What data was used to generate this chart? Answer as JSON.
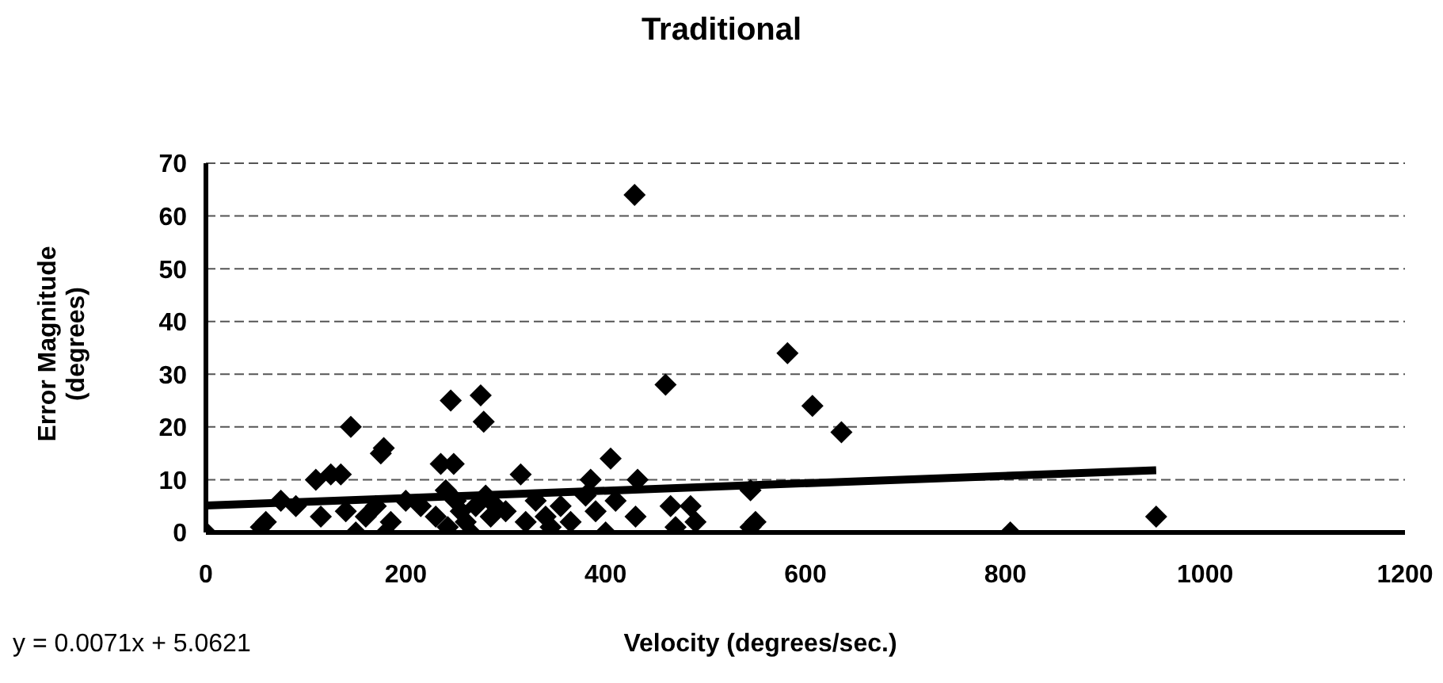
{
  "chart_data": {
    "type": "scatter",
    "title": "Traditional",
    "xlabel": "Velocity (degrees/sec.)",
    "ylabel": "Error Magnitude (degrees)",
    "annotations": [
      "y = 0.0071x + 5.0621"
    ],
    "xlim": [
      0,
      1200
    ],
    "xticks": [
      0,
      200,
      400,
      600,
      800,
      1000,
      1200
    ],
    "ylim": [
      0,
      70
    ],
    "yticks": [
      0,
      10,
      20,
      30,
      40,
      50,
      60,
      70
    ],
    "grid": "y",
    "series": [
      {
        "marker": "diamond",
        "color": "#000000",
        "x": [
          0,
          55,
          60,
          75,
          90,
          110,
          115,
          125,
          135,
          140,
          145,
          150,
          160,
          170,
          175,
          178,
          180,
          185,
          200,
          215,
          230,
          235,
          240,
          242,
          245,
          248,
          250,
          255,
          260,
          265,
          270,
          275,
          278,
          280,
          285,
          290,
          300,
          315,
          320,
          330,
          340,
          345,
          355,
          365,
          380,
          385,
          390,
          400,
          405,
          410,
          430,
          432,
          429,
          460,
          465,
          470,
          485,
          490,
          545,
          545,
          550,
          582,
          607,
          636,
          805,
          951
        ],
        "values": [
          0,
          1,
          2,
          6,
          5,
          10,
          3,
          11,
          11,
          4,
          20,
          0,
          3,
          5,
          15,
          16,
          0,
          2,
          6,
          5,
          3,
          13,
          8,
          1,
          25,
          13,
          6,
          4,
          2,
          0,
          5,
          26,
          21,
          7,
          3,
          5,
          4,
          11,
          2,
          6,
          3,
          1,
          5,
          2,
          7,
          10,
          4,
          0,
          14,
          6,
          3,
          10,
          64,
          28,
          5,
          1,
          5,
          2,
          8,
          1,
          2,
          34,
          24,
          19,
          0,
          3
        ]
      },
      {
        "type": "line",
        "marker": "none",
        "line_style": "solid",
        "color": "#000000",
        "x": [
          0,
          951
        ],
        "values": [
          5.1,
          11.8
        ]
      }
    ]
  }
}
